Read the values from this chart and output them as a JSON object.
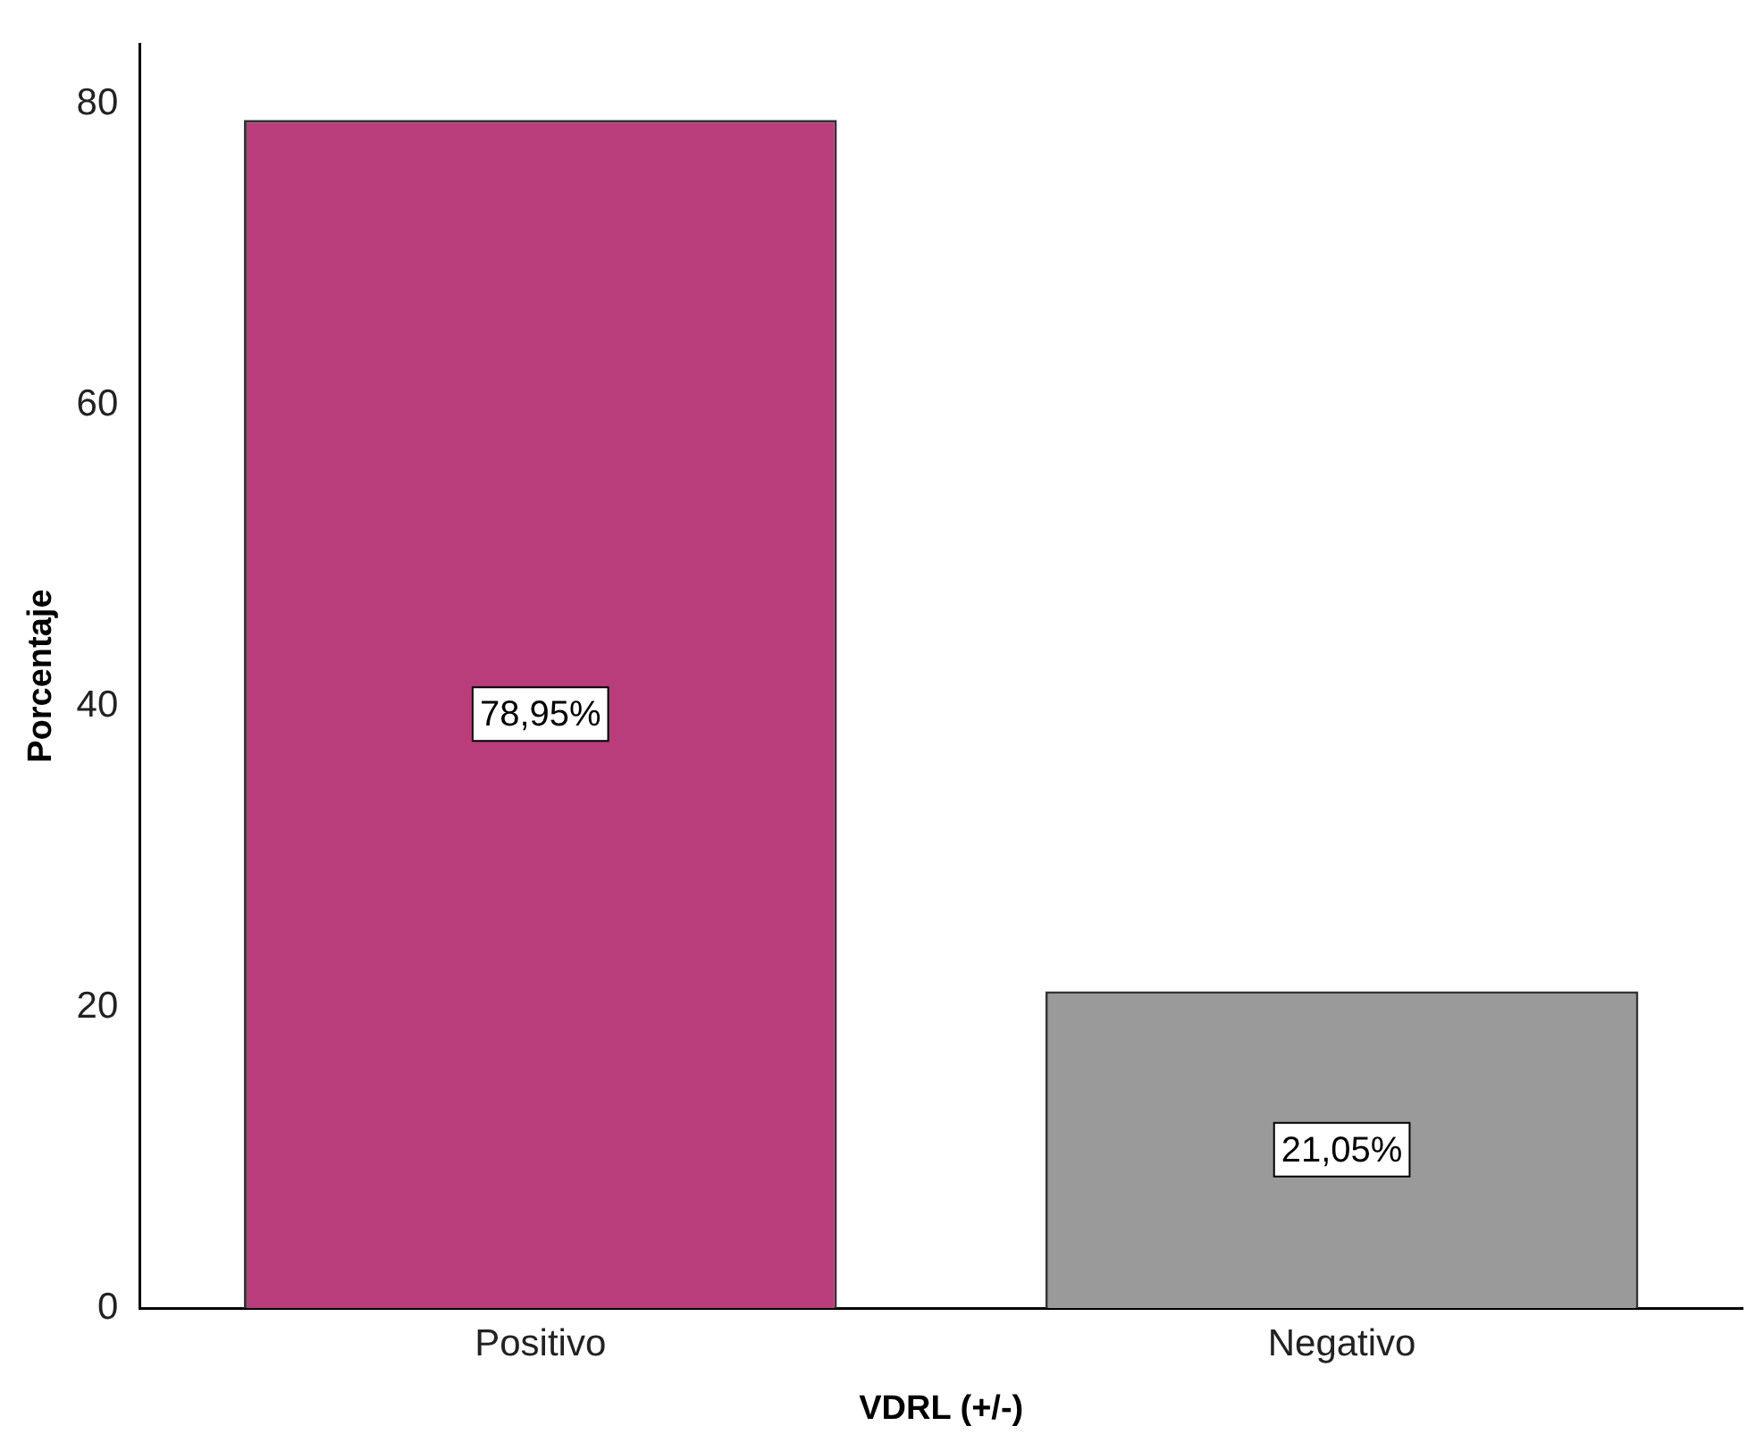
{
  "chart_data": {
    "type": "bar",
    "xlabel": "VDRL (+/-)",
    "ylabel": "Porcentaje",
    "categories": [
      "Positivo",
      "Negativo"
    ],
    "values": [
      78.95,
      21.05
    ],
    "colors": [
      "#b83d7a",
      "#9a9a9a"
    ],
    "value_labels": [
      "78,95%",
      "21,05%"
    ],
    "ylim": [
      0,
      84
    ],
    "yticks": [
      0,
      20,
      40,
      60,
      80
    ],
    "grid": false,
    "legend": false
  }
}
